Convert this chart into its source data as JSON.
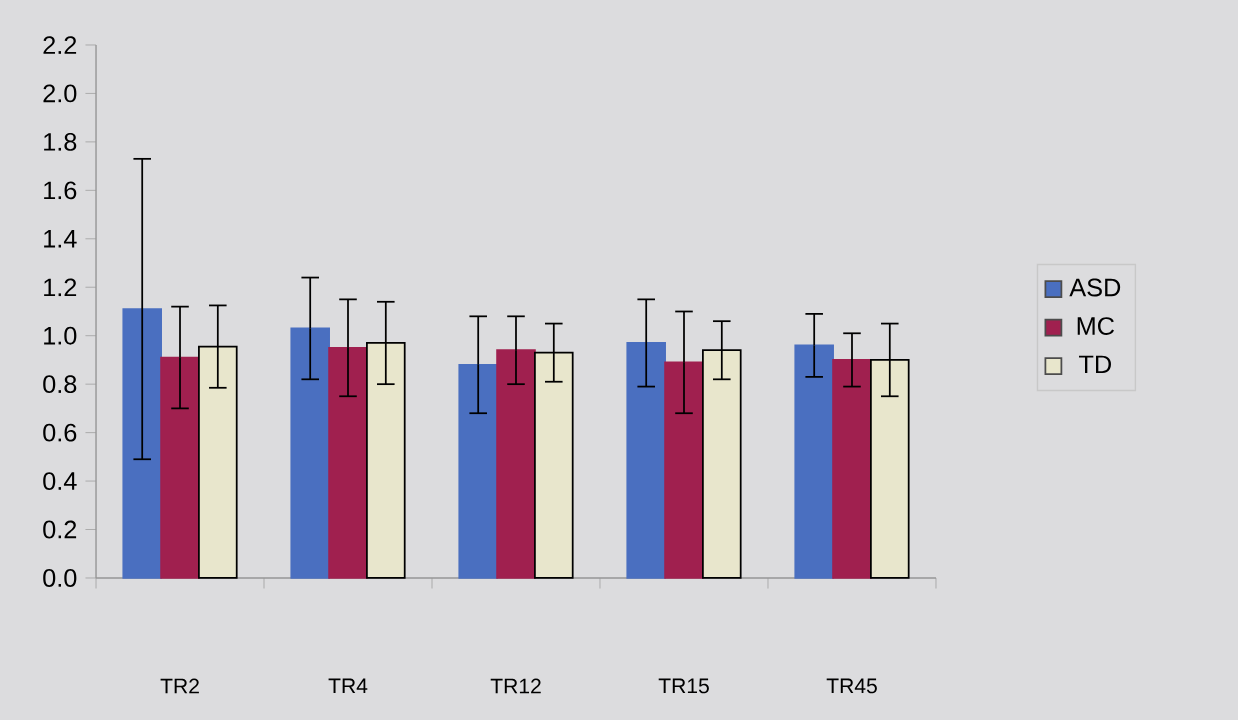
{
  "chart_data": {
    "type": "bar",
    "categories": [
      "TR2",
      "TR4",
      "TR12",
      "TR15",
      "TR45"
    ],
    "series": [
      {
        "name": "ASD",
        "color": "#4a6fc0",
        "values": [
          1.11,
          1.03,
          0.88,
          0.97,
          0.96
        ],
        "errors": [
          0.62,
          0.21,
          0.2,
          0.18,
          0.13
        ]
      },
      {
        "name": "MC",
        "color": "#a0204f",
        "values": [
          0.91,
          0.95,
          0.94,
          0.89,
          0.9
        ],
        "errors": [
          0.21,
          0.2,
          0.14,
          0.21,
          0.11
        ]
      },
      {
        "name": "TD",
        "color": "#e8e6cc",
        "values": [
          0.955,
          0.97,
          0.93,
          0.94,
          0.9
        ],
        "errors": [
          0.17,
          0.17,
          0.12,
          0.12,
          0.15
        ]
      }
    ],
    "ylim": [
      0,
      2.2
    ],
    "yticks": [
      {
        "value": 0,
        "label": "0.0"
      },
      0.2,
      0.4,
      0.6,
      0.8,
      {
        "value": 1,
        "label": "1.0"
      },
      1.2,
      1.4,
      1.6,
      1.8,
      {
        "value": 2,
        "label": "2.0"
      },
      2.2
    ],
    "grid": false,
    "legend": "right"
  }
}
